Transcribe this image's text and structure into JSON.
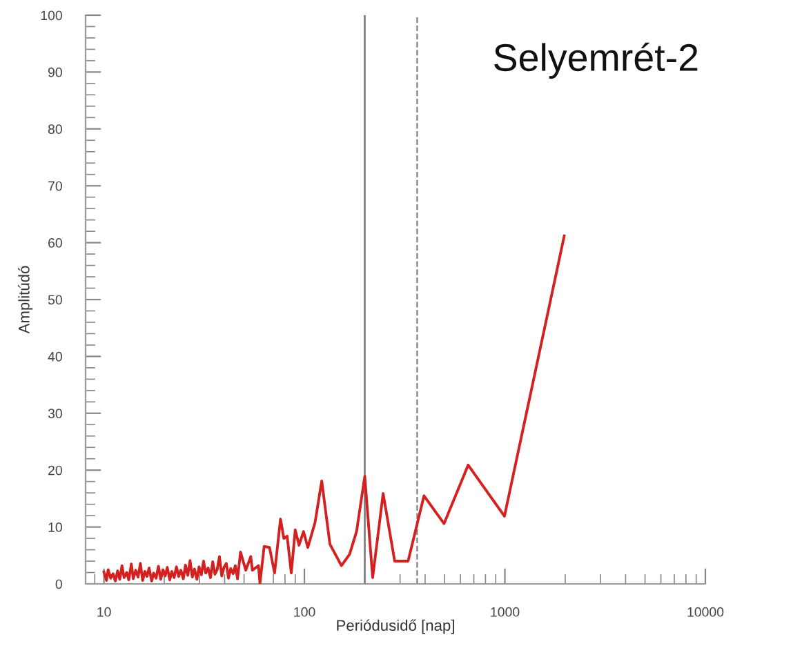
{
  "chart_data": {
    "type": "line",
    "title": "Selyemrét-2",
    "xlabel": "Periódusidő [nap]",
    "ylabel": "Amplitúdó",
    "log": "x",
    "xlim": [
      8.1,
      10000
    ],
    "xticks": [
      10,
      100,
      1000,
      10000
    ],
    "ylim": [
      0,
      100
    ],
    "yticks": [
      0,
      10,
      20,
      30,
      40,
      50,
      60,
      70,
      80,
      90,
      100
    ],
    "grid": false,
    "legend": false,
    "marker": "none",
    "line_style": "solid",
    "series": [
      {
        "color": "#d42020",
        "x": [
          10,
          10.3,
          10.5,
          10.8,
          11.1,
          11.4,
          11.7,
          12.0,
          12.3,
          12.6,
          13.0,
          13.3,
          13.7,
          14.0,
          14.4,
          14.8,
          15.2,
          15.6,
          16.0,
          16.4,
          16.8,
          17.3,
          17.7,
          18.2,
          18.7,
          19.2,
          19.7,
          20.2,
          20.7,
          21.3,
          21.8,
          22.4,
          23.0,
          23.6,
          24.2,
          24.9,
          25.5,
          26.2,
          26.9,
          27.6,
          28.3,
          29.1,
          29.8,
          30.6,
          31.4,
          32.2,
          33.1,
          34.0,
          34.9,
          35.8,
          36.7,
          37.7,
          38.7,
          39.7,
          40.8,
          41.8,
          42.9,
          44.1,
          45.2,
          46.4,
          48,
          51,
          54,
          55,
          59,
          60,
          63,
          67,
          71,
          76,
          79,
          82,
          86,
          90,
          94,
          99,
          104,
          113,
          122,
          134,
          153,
          168,
          182,
          200,
          219,
          247,
          282,
          329,
          395,
          497,
          656,
          995,
          1977
        ],
        "values": [
          2.1,
          0.6,
          2.5,
          1.0,
          1.8,
          0.5,
          2.3,
          0.8,
          3.2,
          1.1,
          2.0,
          0.7,
          3.5,
          0.9,
          2.4,
          1.2,
          3.6,
          0.6,
          2.2,
          1.3,
          2.8,
          0.5,
          1.9,
          1.0,
          3.1,
          0.8,
          2.5,
          1.4,
          2.9,
          0.7,
          2.2,
          1.1,
          3.0,
          1.3,
          2.4,
          0.9,
          3.3,
          1.5,
          4.1,
          1.2,
          2.6,
          0.8,
          3.0,
          1.6,
          4.0,
          1.9,
          2.8,
          1.1,
          3.9,
          1.7,
          2.5,
          4.8,
          1.4,
          2.9,
          3.6,
          1.0,
          2.7,
          1.8,
          3.2,
          0.9,
          5.6,
          2.4,
          4.8,
          2.4,
          3.2,
          0.1,
          6.6,
          6.4,
          1.9,
          11.4,
          8.0,
          8.4,
          1.9,
          9.5,
          6.8,
          9.2,
          6.4,
          10.8,
          18.1,
          7.0,
          3.2,
          5.2,
          9.2,
          18.9,
          1.1,
          15.9,
          4.0,
          4.0,
          15.5,
          10.6,
          20.9,
          11.9,
          61.2
        ]
      }
    ],
    "ref_lines": [
      {
        "axis": "x",
        "value": 200,
        "color": "#808080",
        "line_style": "solid"
      },
      {
        "axis": "x",
        "value": 365,
        "color": "#808080",
        "line_style": "dashed"
      }
    ]
  }
}
